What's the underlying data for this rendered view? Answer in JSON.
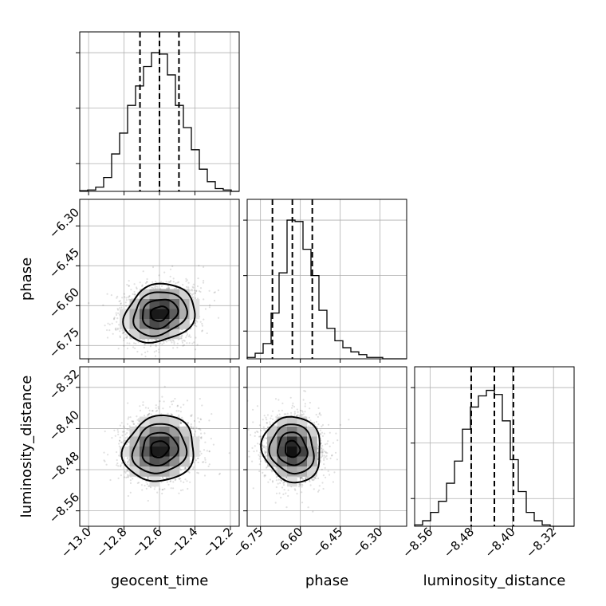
{
  "chart_data": {
    "type": "corner",
    "parameters": [
      "geocent_time",
      "phase",
      "luminosity_distance"
    ],
    "axis_labels": {
      "geocent_time": "geocent_time",
      "phase": "phase",
      "luminosity_distance": "luminosity_distance"
    },
    "ranges": {
      "geocent_time": [
        -13.05,
        -12.15
      ],
      "phase": [
        -6.8,
        -6.2
      ],
      "luminosity_distance": [
        -8.59,
        -8.28
      ]
    },
    "ticks": {
      "geocent_time": [
        {
          "value": -13.0,
          "label": "−13.0"
        },
        {
          "value": -12.8,
          "label": "−12.8"
        },
        {
          "value": -12.6,
          "label": "−12.6"
        },
        {
          "value": -12.4,
          "label": "−12.4"
        },
        {
          "value": -12.2,
          "label": "−12.2"
        }
      ],
      "phase": [
        {
          "value": -6.75,
          "label": "−6.75"
        },
        {
          "value": -6.6,
          "label": "−6.60"
        },
        {
          "value": -6.45,
          "label": "−6.45"
        },
        {
          "value": -6.3,
          "label": "−6.30"
        }
      ],
      "luminosity_distance": [
        {
          "value": -8.56,
          "label": "−8.56"
        },
        {
          "value": -8.48,
          "label": "−8.48"
        },
        {
          "value": -8.4,
          "label": "−8.40"
        },
        {
          "value": -8.32,
          "label": "−8.32"
        }
      ]
    },
    "histograms": {
      "geocent_time": {
        "edges": [
          -13.05,
          -13.005,
          -12.96,
          -12.915,
          -12.87,
          -12.825,
          -12.78,
          -12.735,
          -12.69,
          -12.645,
          -12.6,
          -12.555,
          -12.51,
          -12.465,
          -12.42,
          -12.375,
          -12.33,
          -12.285,
          -12.24,
          -12.195,
          -12.15
        ],
        "counts": [
          0.5,
          1,
          3,
          10,
          27,
          42,
          62,
          76,
          90,
          100,
          99,
          84,
          62,
          46,
          30,
          16,
          7,
          2,
          1,
          0
        ],
        "ymax": 115,
        "quantiles": [
          -12.71,
          -12.6,
          -12.49
        ]
      },
      "phase": {
        "edges": [
          -6.8,
          -6.77,
          -6.74,
          -6.71,
          -6.68,
          -6.65,
          -6.62,
          -6.59,
          -6.56,
          -6.53,
          -6.5,
          -6.47,
          -6.44,
          -6.41,
          -6.38,
          -6.35,
          -6.32,
          -6.29,
          -6.26,
          -6.23,
          -6.2
        ],
        "counts": [
          1,
          4,
          11,
          33,
          62,
          100,
          99,
          79,
          60,
          35,
          22,
          13,
          8,
          5,
          3,
          1,
          1,
          0,
          0,
          0
        ],
        "ymax": 115,
        "quantiles": [
          -6.705,
          -6.63,
          -6.555
        ]
      },
      "luminosity_distance": {
        "edges": [
          -8.59,
          -8.5745,
          -8.559,
          -8.5435,
          -8.528,
          -8.5125,
          -8.497,
          -8.4815,
          -8.466,
          -8.4505,
          -8.435,
          -8.4195,
          -8.404,
          -8.3885,
          -8.373,
          -8.3575,
          -8.342,
          -8.3265,
          -8.311,
          -8.2955,
          -8.28
        ],
        "counts": [
          1,
          4,
          10,
          18,
          31,
          47,
          70,
          86,
          94,
          98,
          95,
          76,
          48,
          25,
          10,
          4,
          1,
          0,
          0,
          0
        ],
        "ymax": 115,
        "quantiles": [
          -8.48,
          -8.435,
          -8.398
        ]
      }
    },
    "pairs": [
      {
        "x": "geocent_time",
        "y": "phase",
        "mean": [
          -12.6,
          -6.63
        ],
        "sd": [
          0.1,
          0.055
        ],
        "corr": 0.18
      },
      {
        "x": "geocent_time",
        "y": "luminosity_distance",
        "mean": [
          -12.6,
          -8.44
        ],
        "sd": [
          0.1,
          0.032
        ],
        "corr": 0.1
      },
      {
        "x": "phase",
        "y": "luminosity_distance",
        "mean": [
          -6.63,
          -8.44
        ],
        "sd": [
          0.055,
          0.032
        ],
        "corr": -0.08
      }
    ],
    "contour_levels_sigma": [
      0.5,
      1.0,
      1.5,
      2.0
    ],
    "grid": true
  }
}
